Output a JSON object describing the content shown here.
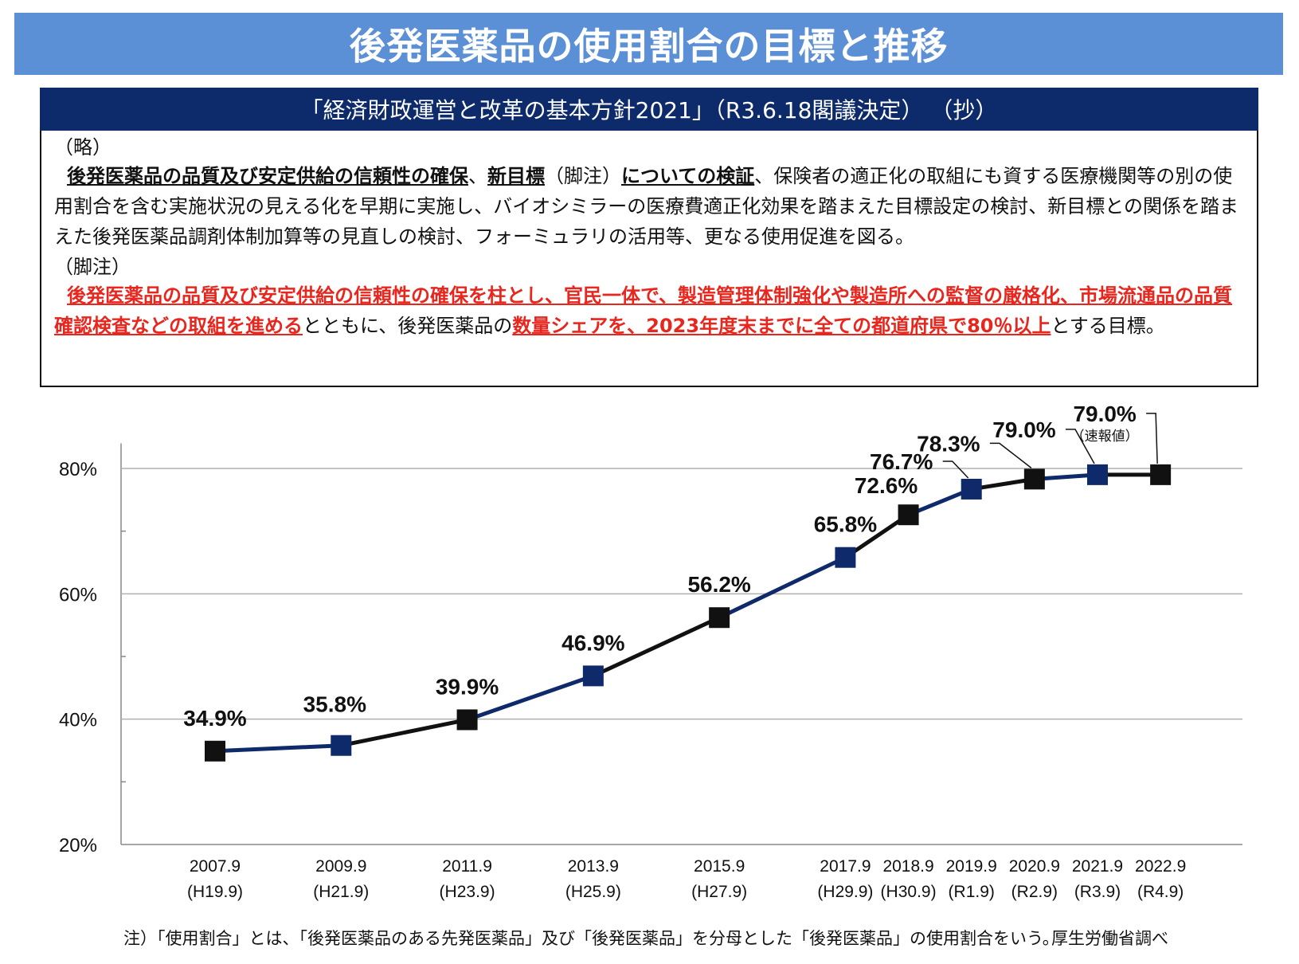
{
  "title": "後発医薬品の使用割合の目標と推移",
  "policy": {
    "heading": "「経済財政運営と改革の基本方針2021」（R3.6.18閣議決定） （抄）",
    "p1": "（略）",
    "p2_seg1": "後発医薬品の品質及び安定供給の信頼性の確保",
    "p2_seg2": "、",
    "p2_seg3": "新目標",
    "p2_seg4": "（脚注）",
    "p2_seg5": "についての検証",
    "p2_seg6": "、保険者の適正化の取組にも資する医療機関等の別の使用割合を含む実施状況の見える化を早期に実施し、バイオシミラーの医療費適正化効果を踏まえた目標設定の検討、新目標との関係を踏まえた後発医薬品調剤体制加算等の見直しの検討、フォーミュラリの活用等、更なる使用促進を図る。",
    "p3": "（脚注）",
    "p4_seg1": "後発医薬品の品質及び安定供給の信頼性の確保を柱とし、官民一体で、製造管理体制強化や製造所への監督の厳格化、市場流通品の品質確認検査などの取組を進める",
    "p4_seg2": "とともに、後発医薬品の",
    "p4_seg3": "数量シェアを、2023年度末までに全ての都道府県で80％以上",
    "p4_seg4": "とする目標。"
  },
  "chart_data": {
    "type": "line",
    "categories": [
      "2007.9",
      "2009.9",
      "2011.9",
      "2013.9",
      "2015.9",
      "2017.9",
      "2018.9",
      "2019.9",
      "2020.9",
      "2021.9",
      "2022.9"
    ],
    "category_sublabels": [
      "(H19.9)",
      "(H21.9)",
      "(H23.9)",
      "(H25.9)",
      "(H27.9)",
      "(H29.9)",
      "(H30.9)",
      "(R1.9)",
      "(R2.9)",
      "(R3.9)",
      "(R4.9)"
    ],
    "x_years": [
      2007,
      2009,
      2011,
      2013,
      2015,
      2017,
      2018,
      2019,
      2020,
      2021,
      2022
    ],
    "values": [
      34.9,
      35.8,
      39.9,
      46.9,
      56.2,
      65.8,
      72.6,
      76.7,
      78.3,
      79.0,
      79.0
    ],
    "data_labels": [
      "34.9%",
      "35.8%",
      "39.9%",
      "46.9%",
      "56.2%",
      "65.8%",
      "72.6%",
      "76.7%",
      "78.3%",
      "79.0%",
      "79.0%"
    ],
    "extra_label": "（速報値）",
    "yticks": [
      "20%",
      "40%",
      "60%",
      "80%"
    ],
    "ylim": [
      20,
      84
    ],
    "grid": true,
    "colors": {
      "dark_marker": "#111111",
      "blue_marker": "#0f2a6b",
      "grid": "#b0b0b0"
    }
  },
  "note": "注）「使用割合」とは、「後発医薬品のある先発医薬品」及び「後発医薬品」を分母とした「後発医薬品」の使用割合をいう。",
  "source": "厚生労働省調べ"
}
